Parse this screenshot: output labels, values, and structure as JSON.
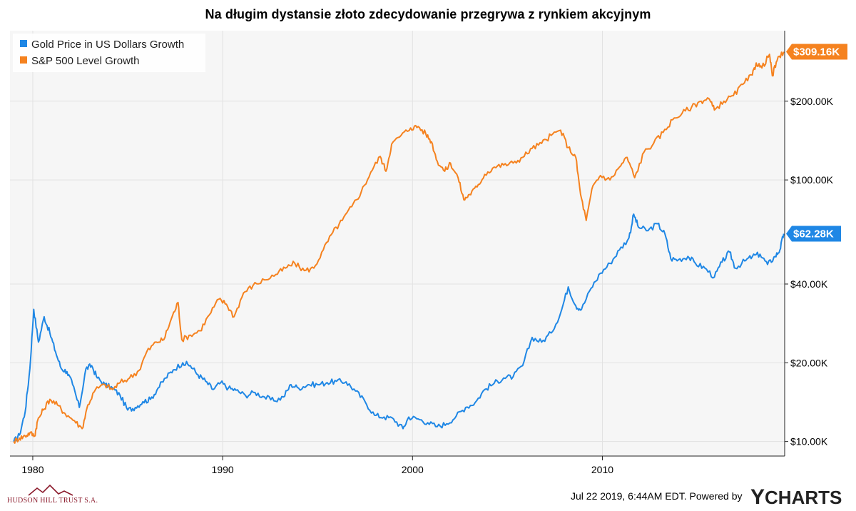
{
  "chart_data": {
    "type": "line",
    "title": "Na długim dystansie złoto zdecydowanie przegrywa z rynkiem akcyjnym",
    "xlabel": "",
    "ylabel": "",
    "scale": "log",
    "xlim": [
      1978.8,
      2019.6
    ],
    "ylim": [
      8800,
      372000
    ],
    "x_ticks": [
      1980,
      1990,
      2000,
      2010
    ],
    "x_tick_labels": [
      "1980",
      "1990",
      "2000",
      "2010"
    ],
    "y_ticks": [
      10000,
      20000,
      40000,
      100000,
      200000
    ],
    "y_tick_labels": [
      "$10.00K",
      "$20.00K",
      "$40.00K",
      "$100.00K",
      "$200.00K"
    ],
    "grid": true,
    "legend_position": "top-left",
    "series": [
      {
        "name": "Gold Price in US Dollars Growth",
        "color": "#1f87e5",
        "end_label": "$62.28K",
        "points": [
          [
            1979.0,
            10000
          ],
          [
            1979.3,
            10600
          ],
          [
            1979.6,
            13000
          ],
          [
            1979.85,
            19000
          ],
          [
            1980.05,
            32000
          ],
          [
            1980.3,
            24000
          ],
          [
            1980.6,
            30000
          ],
          [
            1980.9,
            26000
          ],
          [
            1981.2,
            22000
          ],
          [
            1981.5,
            19000
          ],
          [
            1981.8,
            18500
          ],
          [
            1982.1,
            16500
          ],
          [
            1982.45,
            13500
          ],
          [
            1982.8,
            19000
          ],
          [
            1983.1,
            19500
          ],
          [
            1983.4,
            17500
          ],
          [
            1983.8,
            16500
          ],
          [
            1984.2,
            16000
          ],
          [
            1984.6,
            15000
          ],
          [
            1985.0,
            13200
          ],
          [
            1985.4,
            13500
          ],
          [
            1985.8,
            14200
          ],
          [
            1986.2,
            14500
          ],
          [
            1986.6,
            16000
          ],
          [
            1987.0,
            17500
          ],
          [
            1987.4,
            18800
          ],
          [
            1987.9,
            20000
          ],
          [
            1988.3,
            19500
          ],
          [
            1988.7,
            18000
          ],
          [
            1989.1,
            17000
          ],
          [
            1989.5,
            15800
          ],
          [
            1989.9,
            16800
          ],
          [
            1990.3,
            16000
          ],
          [
            1990.7,
            15700
          ],
          [
            1991.2,
            15000
          ],
          [
            1991.7,
            15400
          ],
          [
            1992.2,
            14800
          ],
          [
            1992.7,
            14300
          ],
          [
            1993.2,
            14800
          ],
          [
            1993.6,
            16500
          ],
          [
            1994.0,
            16000
          ],
          [
            1994.5,
            16500
          ],
          [
            1995.0,
            16500
          ],
          [
            1995.5,
            16800
          ],
          [
            1996.0,
            17000
          ],
          [
            1996.5,
            16900
          ],
          [
            1997.0,
            15600
          ],
          [
            1997.5,
            14200
          ],
          [
            1998.0,
            12600
          ],
          [
            1998.5,
            12400
          ],
          [
            1999.0,
            12200
          ],
          [
            1999.5,
            11200
          ],
          [
            1999.8,
            12400
          ],
          [
            2000.3,
            12200
          ],
          [
            2000.8,
            11800
          ],
          [
            2001.3,
            11400
          ],
          [
            2001.8,
            11700
          ],
          [
            2002.3,
            12500
          ],
          [
            2002.8,
            13500
          ],
          [
            2003.3,
            14100
          ],
          [
            2003.8,
            15800
          ],
          [
            2004.3,
            16700
          ],
          [
            2004.8,
            17500
          ],
          [
            2005.3,
            17700
          ],
          [
            2005.8,
            19500
          ],
          [
            2006.3,
            25000
          ],
          [
            2006.8,
            24000
          ],
          [
            2007.3,
            26000
          ],
          [
            2007.8,
            31000
          ],
          [
            2008.2,
            39000
          ],
          [
            2008.6,
            33000
          ],
          [
            2008.9,
            32000
          ],
          [
            2009.4,
            38500
          ],
          [
            2009.9,
            44000
          ],
          [
            2010.4,
            48000
          ],
          [
            2010.9,
            54000
          ],
          [
            2011.4,
            60000
          ],
          [
            2011.65,
            74000
          ],
          [
            2011.9,
            66000
          ],
          [
            2012.4,
            64000
          ],
          [
            2012.9,
            68000
          ],
          [
            2013.3,
            62000
          ],
          [
            2013.6,
            50000
          ],
          [
            2014.0,
            49500
          ],
          [
            2014.5,
            51000
          ],
          [
            2014.9,
            48000
          ],
          [
            2015.4,
            46000
          ],
          [
            2015.9,
            42500
          ],
          [
            2016.3,
            48500
          ],
          [
            2016.7,
            53000
          ],
          [
            2017.0,
            46000
          ],
          [
            2017.5,
            49000
          ],
          [
            2017.9,
            51000
          ],
          [
            2018.3,
            52000
          ],
          [
            2018.7,
            47500
          ],
          [
            2019.1,
            51000
          ],
          [
            2019.35,
            54000
          ],
          [
            2019.55,
            62280
          ]
        ]
      },
      {
        "name": "S&P 500 Level Growth",
        "color": "#f5821f",
        "end_label": "$309.16K",
        "points": [
          [
            1979.0,
            10000
          ],
          [
            1979.3,
            10300
          ],
          [
            1979.6,
            10500
          ],
          [
            1979.85,
            10800
          ],
          [
            1980.1,
            10500
          ],
          [
            1980.25,
            12000
          ],
          [
            1980.55,
            13200
          ],
          [
            1980.9,
            14500
          ],
          [
            1981.3,
            13800
          ],
          [
            1981.7,
            12800
          ],
          [
            1982.2,
            12000
          ],
          [
            1982.6,
            11200
          ],
          [
            1982.9,
            13800
          ],
          [
            1983.3,
            15800
          ],
          [
            1983.8,
            16500
          ],
          [
            1984.2,
            15800
          ],
          [
            1984.6,
            16800
          ],
          [
            1985.1,
            17500
          ],
          [
            1985.6,
            18700
          ],
          [
            1986.0,
            22000
          ],
          [
            1986.5,
            24000
          ],
          [
            1986.9,
            24500
          ],
          [
            1987.3,
            29500
          ],
          [
            1987.65,
            34000
          ],
          [
            1987.85,
            24500
          ],
          [
            1988.3,
            25500
          ],
          [
            1988.8,
            26500
          ],
          [
            1989.3,
            30500
          ],
          [
            1989.8,
            35000
          ],
          [
            1990.2,
            33500
          ],
          [
            1990.6,
            30000
          ],
          [
            1991.1,
            37000
          ],
          [
            1991.6,
            39500
          ],
          [
            1992.2,
            41500
          ],
          [
            1992.8,
            43500
          ],
          [
            1993.3,
            46000
          ],
          [
            1993.8,
            48000
          ],
          [
            1994.3,
            45000
          ],
          [
            1994.8,
            46000
          ],
          [
            1995.3,
            54000
          ],
          [
            1995.8,
            63000
          ],
          [
            1996.3,
            70000
          ],
          [
            1996.8,
            79000
          ],
          [
            1997.3,
            90000
          ],
          [
            1997.8,
            107000
          ],
          [
            1998.3,
            123000
          ],
          [
            1998.6,
            108000
          ],
          [
            1998.9,
            137000
          ],
          [
            1999.4,
            148000
          ],
          [
            1999.9,
            158000
          ],
          [
            2000.3,
            160000
          ],
          [
            2000.7,
            150000
          ],
          [
            2001.0,
            140000
          ],
          [
            2001.3,
            118000
          ],
          [
            2001.7,
            108000
          ],
          [
            2002.0,
            116000
          ],
          [
            2002.4,
            102000
          ],
          [
            2002.7,
            84000
          ],
          [
            2003.0,
            88000
          ],
          [
            2003.4,
            94000
          ],
          [
            2003.8,
            105000
          ],
          [
            2004.3,
            112000
          ],
          [
            2004.8,
            114000
          ],
          [
            2005.3,
            116000
          ],
          [
            2005.8,
            122000
          ],
          [
            2006.3,
            132000
          ],
          [
            2006.8,
            138000
          ],
          [
            2007.3,
            148000
          ],
          [
            2007.8,
            155000
          ],
          [
            2008.2,
            133000
          ],
          [
            2008.6,
            122000
          ],
          [
            2008.85,
            88000
          ],
          [
            2009.15,
            70000
          ],
          [
            2009.5,
            95000
          ],
          [
            2009.9,
            104000
          ],
          [
            2010.4,
            100000
          ],
          [
            2010.9,
            112000
          ],
          [
            2011.3,
            122000
          ],
          [
            2011.7,
            102000
          ],
          [
            2012.2,
            128000
          ],
          [
            2012.7,
            138000
          ],
          [
            2013.2,
            152000
          ],
          [
            2013.7,
            170000
          ],
          [
            2014.2,
            180000
          ],
          [
            2014.7,
            190000
          ],
          [
            2015.2,
            200000
          ],
          [
            2015.6,
            205000
          ],
          [
            2015.9,
            185000
          ],
          [
            2016.4,
            200000
          ],
          [
            2016.9,
            210000
          ],
          [
            2017.4,
            232000
          ],
          [
            2017.9,
            252000
          ],
          [
            2018.1,
            280000
          ],
          [
            2018.4,
            268000
          ],
          [
            2018.8,
            302000
          ],
          [
            2018.95,
            250000
          ],
          [
            2019.2,
            286000
          ],
          [
            2019.55,
            309160
          ]
        ]
      }
    ]
  },
  "footer": {
    "timestamp": "Jul 22 2019, 6:44AM EDT.",
    "powered_by": "Powered by",
    "logo_y": "Y",
    "logo_rest": "CHARTS"
  },
  "brand": {
    "name": "HUDSON HILL TRUST S.A."
  },
  "colors": {
    "plot_background": "#f6f6f6",
    "gridline": "#e2e2e2",
    "axis": "#222222",
    "brand": "#8b1a2b"
  }
}
